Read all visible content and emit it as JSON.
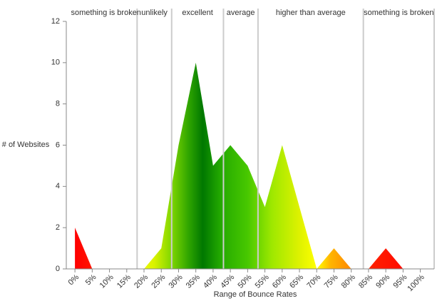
{
  "chart_data": {
    "type": "area",
    "x": [
      0,
      5,
      10,
      15,
      20,
      25,
      30,
      35,
      40,
      45,
      50,
      55,
      60,
      65,
      70,
      75,
      80,
      85,
      90,
      95,
      100
    ],
    "values": [
      2,
      0,
      0,
      0,
      0,
      1,
      6,
      10,
      5,
      6,
      5,
      3,
      6,
      3,
      0,
      1,
      0,
      0,
      1,
      0,
      0
    ],
    "xlim": [
      -2.5,
      104
    ],
    "xticks": [
      {
        "value": 0,
        "label": "0%"
      },
      {
        "value": 5,
        "label": "5%"
      },
      {
        "value": 10,
        "label": "10%"
      },
      {
        "value": 15,
        "label": "15%"
      },
      {
        "value": 20,
        "label": "20%"
      },
      {
        "value": 25,
        "label": "25%"
      },
      {
        "value": 30,
        "label": "30%"
      },
      {
        "value": 35,
        "label": "35%"
      },
      {
        "value": 40,
        "label": "40%"
      },
      {
        "value": 45,
        "label": "45%"
      },
      {
        "value": 50,
        "label": "50%"
      },
      {
        "value": 55,
        "label": "55%"
      },
      {
        "value": 60,
        "label": "60%"
      },
      {
        "value": 65,
        "label": "65%"
      },
      {
        "value": 70,
        "label": "70%"
      },
      {
        "value": 75,
        "label": "75%"
      },
      {
        "value": 80,
        "label": "80%"
      },
      {
        "value": 85,
        "label": "85%"
      },
      {
        "value": 90,
        "label": "90%"
      },
      {
        "value": 95,
        "label": "95%"
      },
      {
        "value": 100,
        "label": "100%"
      }
    ],
    "ylim": [
      0,
      12
    ],
    "yticks": [
      0,
      2,
      4,
      6,
      8,
      10,
      12
    ],
    "xlabel": "Range of Bounce Rates",
    "ylabel": "# of Websites",
    "zone_lines": [
      18,
      28,
      43,
      53,
      83.5,
      104
    ],
    "zones": [
      "something is broken",
      "unlikely",
      "excellent",
      "average",
      "higher than average",
      "something is broken"
    ],
    "gradient": [
      {
        "offset": 0,
        "color": "#ff0000"
      },
      {
        "offset": 6,
        "color": "#ff1a00"
      },
      {
        "offset": 17,
        "color": "#ffff00"
      },
      {
        "offset": 23,
        "color": "#d8f200"
      },
      {
        "offset": 28,
        "color": "#7fd600"
      },
      {
        "offset": 33,
        "color": "#2ea400"
      },
      {
        "offset": 37,
        "color": "#007800"
      },
      {
        "offset": 42,
        "color": "#22a800"
      },
      {
        "offset": 50,
        "color": "#48c800"
      },
      {
        "offset": 57,
        "color": "#9ee800"
      },
      {
        "offset": 65,
        "color": "#def200"
      },
      {
        "offset": 70,
        "color": "#ffff00"
      },
      {
        "offset": 74,
        "color": "#ffb400"
      },
      {
        "offset": 80,
        "color": "#ff8800"
      },
      {
        "offset": 86,
        "color": "#ff2000"
      },
      {
        "offset": 100,
        "color": "#ff0000"
      }
    ]
  }
}
